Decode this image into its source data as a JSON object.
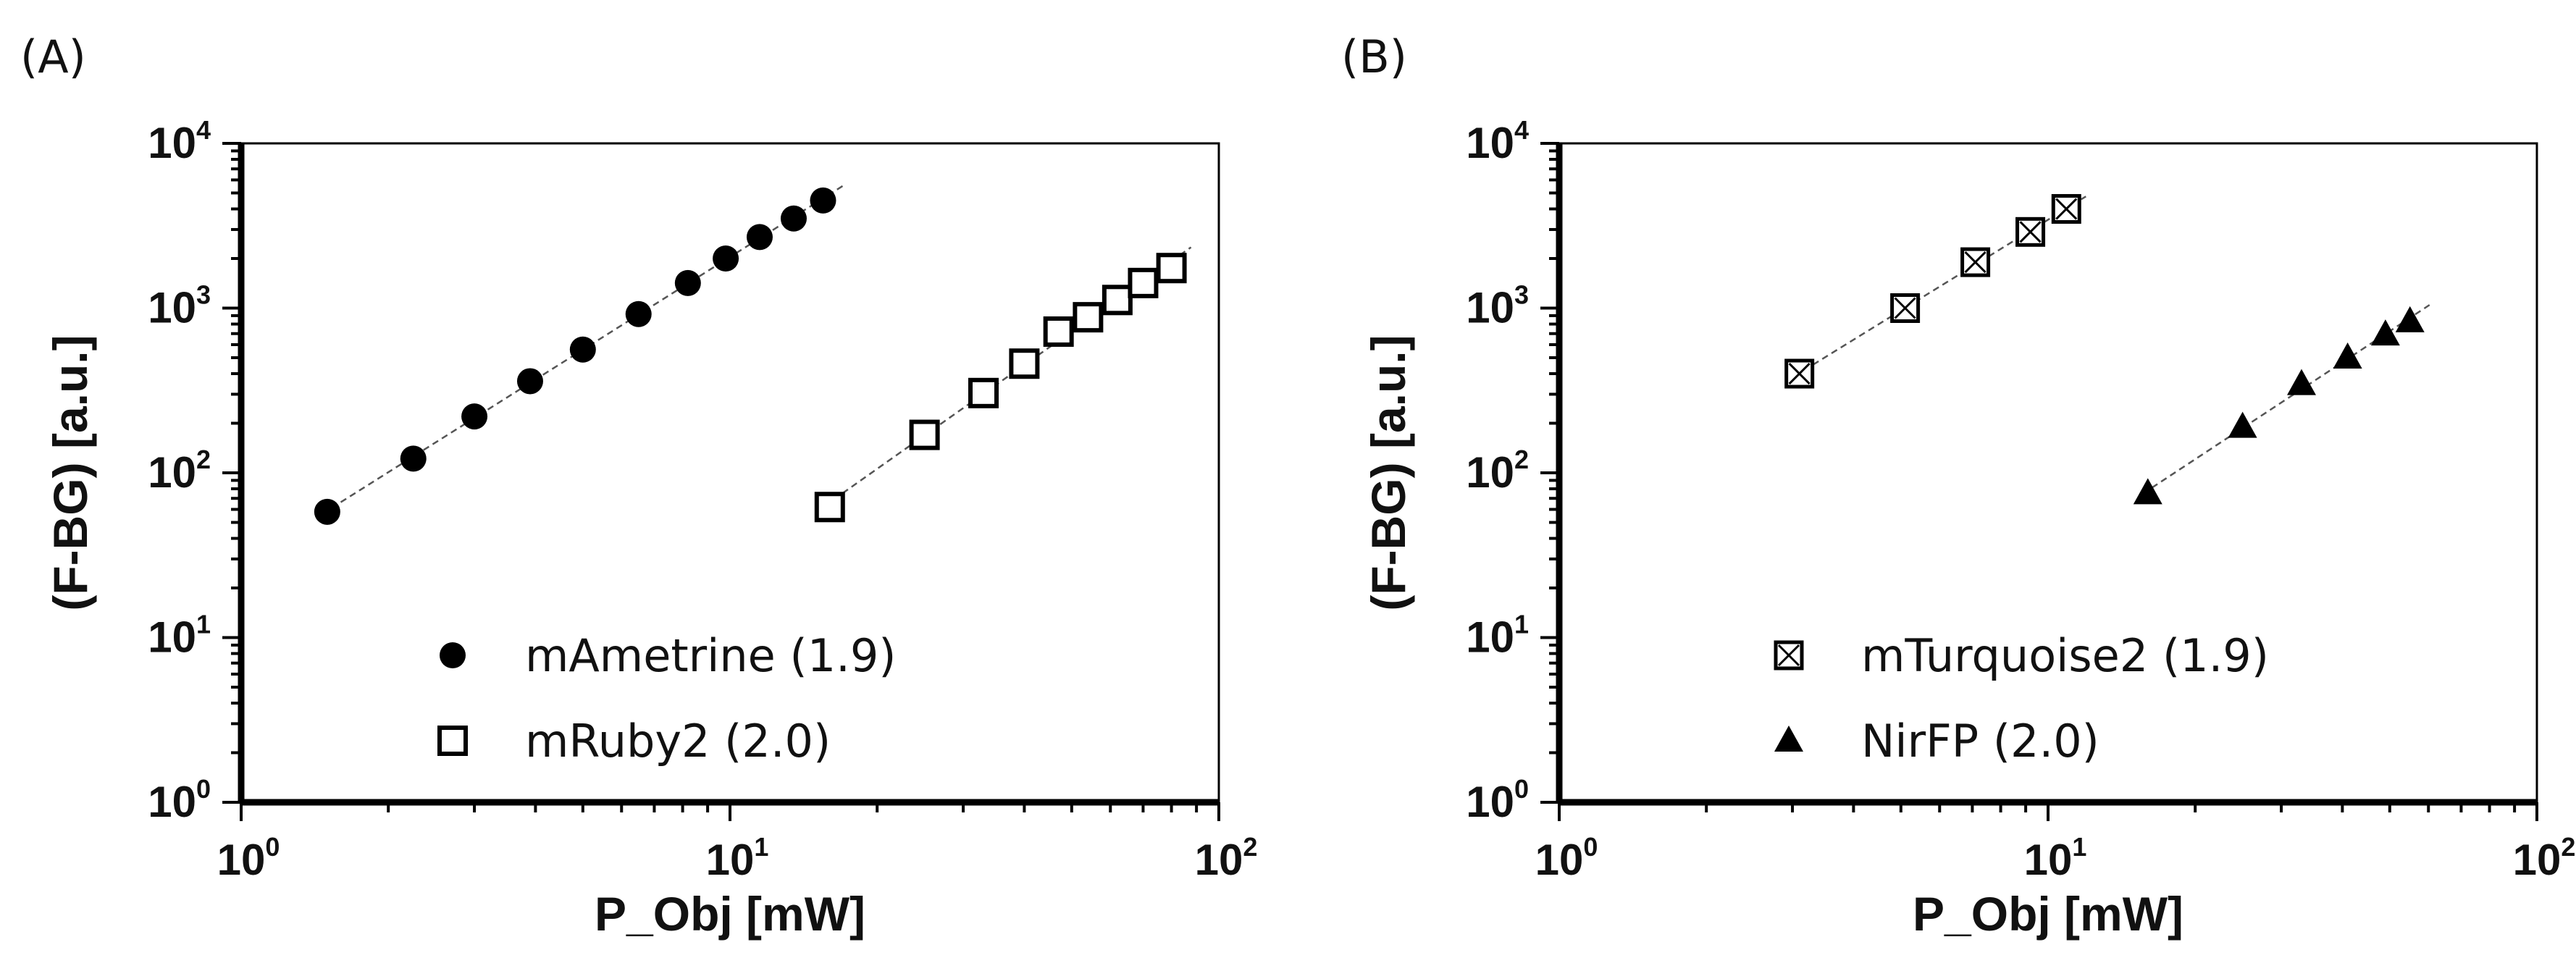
{
  "chart_data": [
    {
      "panel_label": "(A)",
      "type": "scatter",
      "xlabel": "P_Obj [mW]",
      "ylabel": "(F-BG) [a.u.]",
      "xscale": "log",
      "yscale": "log",
      "xlim": [
        1,
        100
      ],
      "ylim": [
        1,
        10000
      ],
      "x_ticks": [
        {
          "base": "10",
          "exp": "0"
        },
        {
          "base": "10",
          "exp": "1"
        },
        {
          "base": "10",
          "exp": "2"
        }
      ],
      "y_ticks": [
        {
          "base": "10",
          "exp": "0"
        },
        {
          "base": "10",
          "exp": "1"
        },
        {
          "base": "10",
          "exp": "2"
        },
        {
          "base": "10",
          "exp": "3"
        },
        {
          "base": "10",
          "exp": "4"
        }
      ],
      "legend_position": "bottom-center",
      "series": [
        {
          "name": "mAmetrine (1.9)",
          "marker": "filled-circle",
          "fit": "dashed",
          "x": [
            1.5,
            2.25,
            3.0,
            3.9,
            5.0,
            6.5,
            8.2,
            9.8,
            11.5,
            13.5,
            15.5
          ],
          "y": [
            58,
            122,
            220,
            360,
            560,
            920,
            1420,
            2000,
            2700,
            3500,
            4500
          ]
        },
        {
          "name": "mRuby2 (2.0)",
          "marker": "open-square",
          "fit": "dashed",
          "x": [
            16,
            25,
            33,
            40,
            47,
            54,
            62,
            70,
            80
          ],
          "y": [
            62,
            170,
            305,
            460,
            720,
            880,
            1120,
            1420,
            1750
          ]
        }
      ]
    },
    {
      "panel_label": "(B)",
      "type": "scatter",
      "xlabel": "P_Obj [mW]",
      "ylabel": "(F-BG) [a.u.]",
      "xscale": "log",
      "yscale": "log",
      "xlim": [
        1,
        100
      ],
      "ylim": [
        1,
        10000
      ],
      "x_ticks": [
        {
          "base": "10",
          "exp": "0"
        },
        {
          "base": "10",
          "exp": "1"
        },
        {
          "base": "10",
          "exp": "2"
        }
      ],
      "y_ticks": [
        {
          "base": "10",
          "exp": "0"
        },
        {
          "base": "10",
          "exp": "1"
        },
        {
          "base": "10",
          "exp": "2"
        },
        {
          "base": "10",
          "exp": "3"
        },
        {
          "base": "10",
          "exp": "4"
        }
      ],
      "legend_position": "bottom-center",
      "series": [
        {
          "name": "mTurquoise2 (1.9)",
          "marker": "crossed-square",
          "fit": "dashed",
          "x": [
            3.1,
            5.1,
            7.1,
            9.2,
            10.9
          ],
          "y": [
            400,
            1000,
            1900,
            2900,
            4000
          ]
        },
        {
          "name": "NirFP (2.0)",
          "marker": "filled-triangle",
          "fit": "dashed",
          "x": [
            16,
            25,
            33,
            41,
            49,
            55
          ],
          "y": [
            75,
            190,
            345,
            500,
            690,
            830
          ]
        }
      ]
    }
  ]
}
